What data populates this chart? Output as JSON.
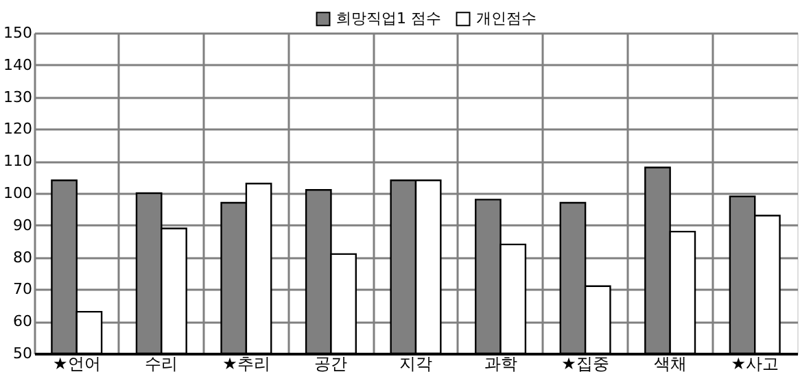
{
  "chart_data": {
    "type": "bar",
    "categories": [
      "★언어",
      "수리",
      "★추리",
      "공간",
      "지각",
      "과학",
      "★집중",
      "색채",
      "★사고"
    ],
    "series": [
      {
        "name": "희망직업1 점수",
        "color": "#808080",
        "values": [
          104,
          100,
          97,
          101,
          104,
          98,
          97,
          108,
          99
        ]
      },
      {
        "name": "개인점수",
        "color": "#ffffff",
        "values": [
          63,
          89,
          103,
          81,
          104,
          84,
          71,
          88,
          93
        ]
      }
    ],
    "ylim": [
      50,
      150
    ],
    "yticks": [
      50,
      60,
      70,
      80,
      90,
      100,
      110,
      120,
      130,
      140,
      150
    ],
    "grid": true,
    "legend": "top right"
  }
}
